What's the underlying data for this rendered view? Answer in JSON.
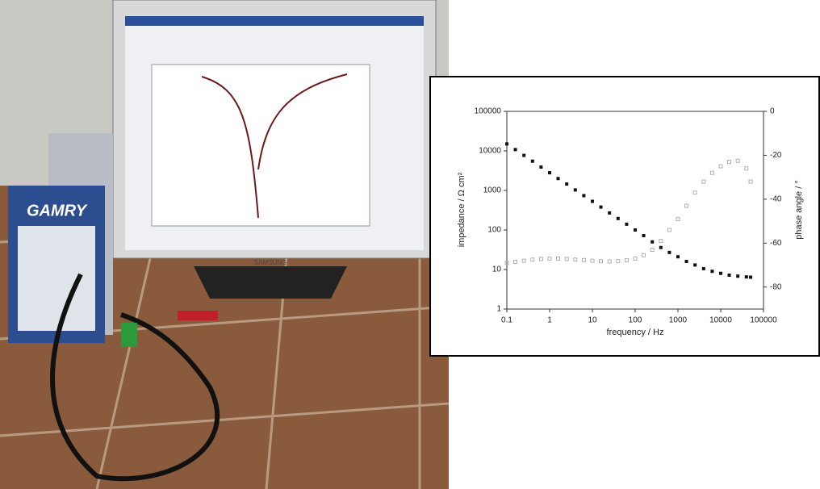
{
  "photo": {
    "device_brand": "GAMRY",
    "monitor_brand": "SAMSUNG"
  },
  "chart_data": {
    "type": "scatter",
    "xlabel": "frequency / Hz",
    "ylabel": "impedance / Ω cm²",
    "y2label": "phase angle / °",
    "xscale": "log",
    "yscale": "log",
    "x": [
      0.1,
      0.158,
      0.251,
      0.398,
      0.631,
      1,
      1.58,
      2.51,
      3.98,
      6.31,
      10,
      15.8,
      25.1,
      39.8,
      63.1,
      100,
      158,
      251,
      398,
      631,
      1000,
      1580,
      2510,
      3980,
      6310,
      10000,
      15800,
      25100,
      39800,
      50000
    ],
    "series": [
      {
        "color": "#111111",
        "marker": "filled-square",
        "values": [
          15000,
          10800,
          7700,
          5500,
          3900,
          2800,
          2000,
          1450,
          1030,
          740,
          530,
          380,
          270,
          195,
          140,
          100,
          72,
          50,
          36,
          27,
          21,
          16,
          13,
          10.5,
          9,
          8,
          7.2,
          6.8,
          6.5,
          6.4
        ]
      },
      {
        "color": "#b0b0b0",
        "marker": "open-square",
        "axis": "y2",
        "values": [
          -69,
          -68.5,
          -68,
          -67.5,
          -67.2,
          -67,
          -67,
          -67.2,
          -67.5,
          -67.7,
          -68,
          -68.2,
          -68.3,
          -68.2,
          -67.8,
          -67,
          -65.5,
          -63,
          -59,
          -54,
          -49,
          -43,
          -37,
          -32,
          -28,
          -25,
          -23,
          -22.5,
          -26,
          -32
        ]
      }
    ],
    "xlim": [
      0.1,
      100000
    ],
    "xticks": [
      0.1,
      1,
      10,
      100,
      1000,
      10000,
      100000
    ],
    "ylim": [
      1,
      100000
    ],
    "yticks": [
      1,
      10,
      100,
      1000,
      10000,
      100000
    ],
    "y2lim": [
      -90,
      0
    ],
    "y2ticks": [
      0,
      -20,
      -40,
      -60,
      -80
    ]
  }
}
